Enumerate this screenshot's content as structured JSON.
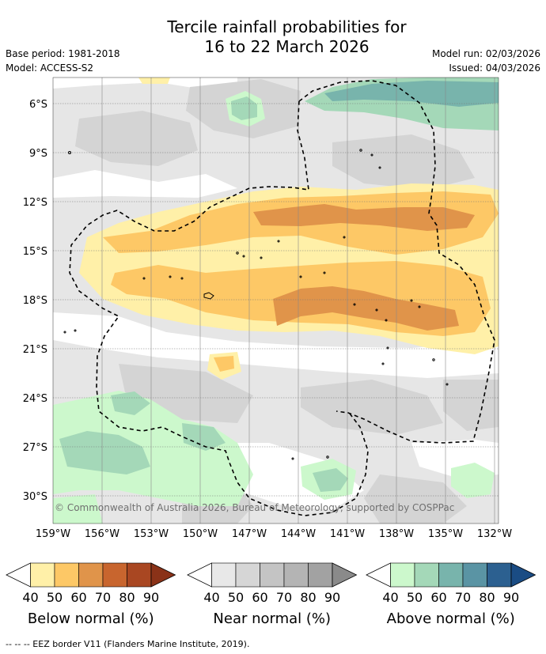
{
  "title": {
    "line1": "Tercile rainfall probabilities for",
    "line2": "16 to 22 March 2026"
  },
  "meta": {
    "base_period": "Base period: 1981-2018",
    "model": "Model: ACCESS-S2",
    "model_run": "Model run: 02/03/2026",
    "issued": "Issued: 04/03/2026"
  },
  "map": {
    "lat_labels": [
      "6°S",
      "9°S",
      "12°S",
      "15°S",
      "18°S",
      "21°S",
      "24°S",
      "27°S",
      "30°S"
    ],
    "lon_labels": [
      "159°W",
      "156°W",
      "153°W",
      "150°W",
      "147°W",
      "144°W",
      "141°W",
      "138°W",
      "135°W",
      "132°W"
    ],
    "copyright": "© Commonwealth of Australia 2026, Bureau of Meteorology, supported by COSPPac"
  },
  "colorbars": [
    {
      "name": "below",
      "label": "Below normal (%)",
      "ticks": [
        "40",
        "50",
        "60",
        "70",
        "80",
        "90"
      ],
      "colors": [
        "#fff0a8",
        "#fdc866",
        "#e0944a",
        "#c8652e",
        "#a94722",
        "#8a3218"
      ]
    },
    {
      "name": "near",
      "label": "Near normal (%)",
      "ticks": [
        "40",
        "50",
        "60",
        "70",
        "80",
        "90"
      ],
      "colors": [
        "#e8e8e8",
        "#d6d6d6",
        "#c4c4c4",
        "#b4b4b4",
        "#a2a2a2",
        "#8a8a8a"
      ]
    },
    {
      "name": "above",
      "label": "Above normal (%)",
      "ticks": [
        "40",
        "50",
        "60",
        "70",
        "80",
        "90"
      ],
      "colors": [
        "#ccf8cc",
        "#a4d8b8",
        "#78b4ac",
        "#5a94a4",
        "#2c6090",
        "#1a4c84"
      ]
    }
  ],
  "eez_note": "-- -- -- EEZ border V11 (Flanders Marine Institute, 2019)."
}
